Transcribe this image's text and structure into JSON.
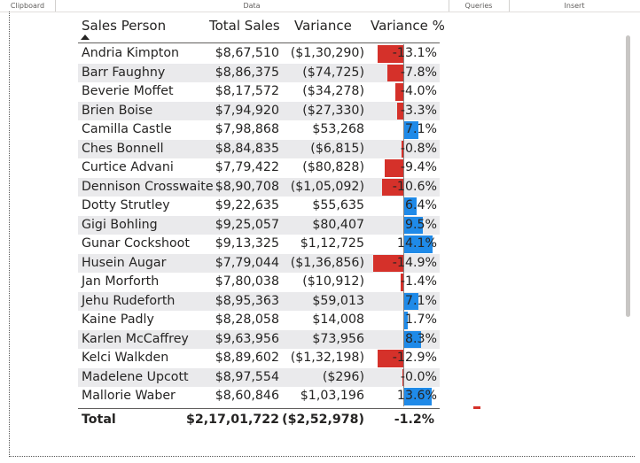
{
  "ribbon": {
    "groups": [
      "Clipboard",
      "Data",
      "Queries",
      "Insert"
    ]
  },
  "table": {
    "headers": {
      "sales_person": "Sales Person",
      "total_sales": "Total Sales",
      "variance": "Variance",
      "variance_pct": "Variance %"
    },
    "rows": [
      {
        "name": "Andria Kimpton",
        "sales": "$8,67,510",
        "variance": "($1,30,290)",
        "pct": "-13.1%",
        "value": -13.1
      },
      {
        "name": "Barr Faughny",
        "sales": "$8,86,375",
        "variance": "($74,725)",
        "pct": "-7.8%",
        "value": -7.8
      },
      {
        "name": "Beverie Moffet",
        "sales": "$8,17,572",
        "variance": "($34,278)",
        "pct": "-4.0%",
        "value": -4.0
      },
      {
        "name": "Brien Boise",
        "sales": "$7,94,920",
        "variance": "($27,330)",
        "pct": "-3.3%",
        "value": -3.3
      },
      {
        "name": "Camilla Castle",
        "sales": "$7,98,868",
        "variance": "$53,268",
        "pct": "7.1%",
        "value": 7.1
      },
      {
        "name": "Ches Bonnell",
        "sales": "$8,84,835",
        "variance": "($6,815)",
        "pct": "-0.8%",
        "value": -0.8
      },
      {
        "name": "Curtice Advani",
        "sales": "$7,79,422",
        "variance": "($80,828)",
        "pct": "-9.4%",
        "value": -9.4
      },
      {
        "name": "Dennison Crosswaite",
        "sales": "$8,90,708",
        "variance": "($1,05,092)",
        "pct": "-10.6%",
        "value": -10.6
      },
      {
        "name": "Dotty Strutley",
        "sales": "$9,22,635",
        "variance": "$55,635",
        "pct": "6.4%",
        "value": 6.4
      },
      {
        "name": "Gigi Bohling",
        "sales": "$9,25,057",
        "variance": "$80,407",
        "pct": "9.5%",
        "value": 9.5
      },
      {
        "name": "Gunar Cockshoot",
        "sales": "$9,13,325",
        "variance": "$1,12,725",
        "pct": "14.1%",
        "value": 14.1
      },
      {
        "name": "Husein Augar",
        "sales": "$7,79,044",
        "variance": "($1,36,856)",
        "pct": "-14.9%",
        "value": -14.9
      },
      {
        "name": "Jan Morforth",
        "sales": "$7,80,038",
        "variance": "($10,912)",
        "pct": "-1.4%",
        "value": -1.4
      },
      {
        "name": "Jehu Rudeforth",
        "sales": "$8,95,363",
        "variance": "$59,013",
        "pct": "7.1%",
        "value": 7.1
      },
      {
        "name": "Kaine Padly",
        "sales": "$8,28,058",
        "variance": "$14,008",
        "pct": "1.7%",
        "value": 1.7
      },
      {
        "name": "Karlen McCaffrey",
        "sales": "$9,63,956",
        "variance": "$73,956",
        "pct": "8.3%",
        "value": 8.3
      },
      {
        "name": "Kelci Walkden",
        "sales": "$8,89,602",
        "variance": "($1,32,198)",
        "pct": "-12.9%",
        "value": -12.9
      },
      {
        "name": "Madelene Upcott",
        "sales": "$8,97,554",
        "variance": "($296)",
        "pct": "-0.0%",
        "value": -0.04
      },
      {
        "name": "Mallorie Waber",
        "sales": "$8,60,846",
        "variance": "$1,03,196",
        "pct": "13.6%",
        "value": 13.6
      }
    ],
    "total": {
      "label": "Total",
      "sales": "$2,17,01,722",
      "variance": "($2,52,978)",
      "pct": "-1.2%"
    },
    "colors": {
      "negative_bar": "#d5312a",
      "positive_bar": "#1f8ae8",
      "alt_row": "#eaeaec"
    }
  }
}
